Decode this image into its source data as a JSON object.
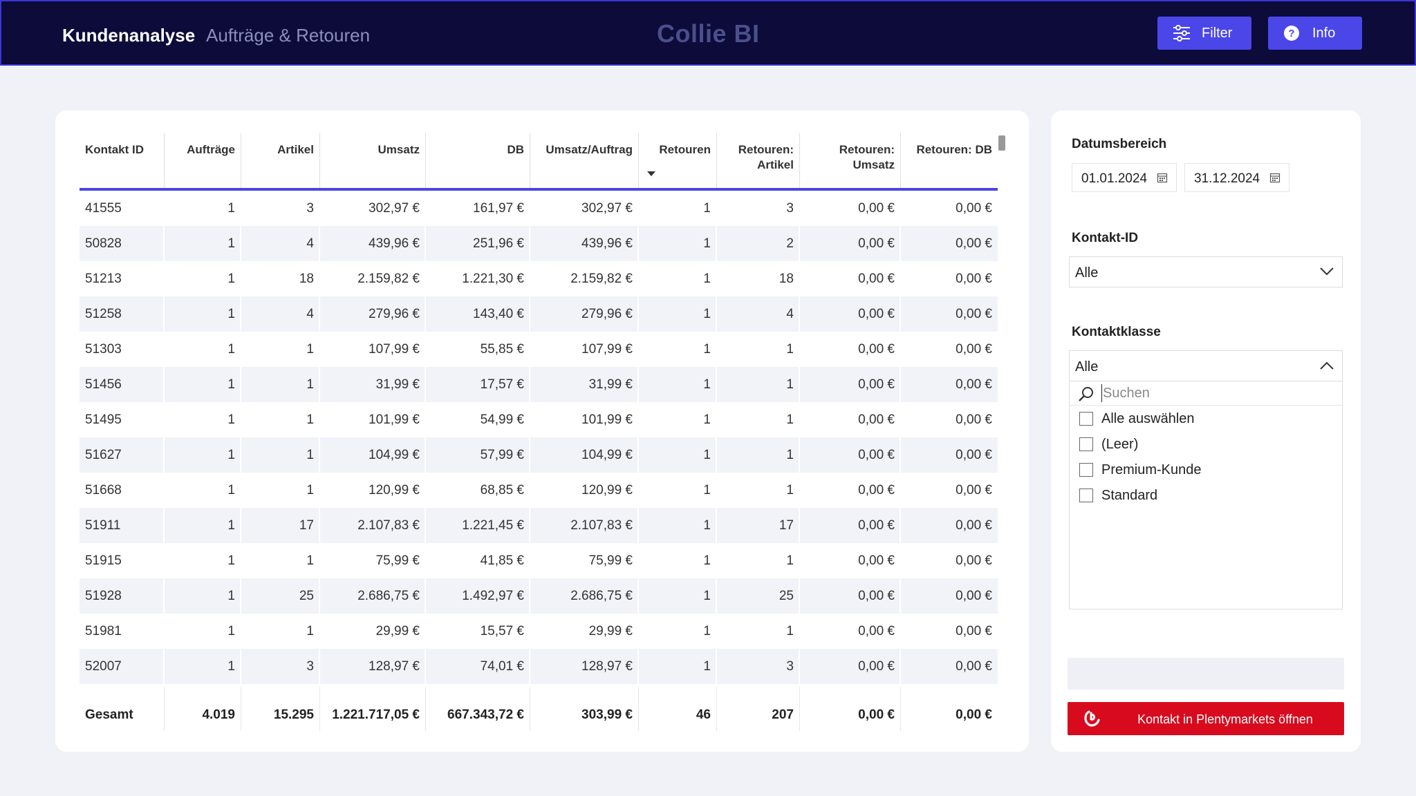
{
  "header": {
    "title": "Kundenanalyse",
    "subtitle": "Aufträge & Retouren",
    "brand": "Collie BI",
    "filter_label": "Filter",
    "info_label": "Info",
    "accent_color": "#4b46e8",
    "background_color": "#0d0b3a"
  },
  "table": {
    "columns": [
      "Kontakt ID",
      "Aufträge",
      "Artikel",
      "Umsatz",
      "DB",
      "Umsatz/Auftrag",
      "Retouren",
      "Retouren:\nArtikel",
      "Retouren:\nUmsatz",
      "Retouren: DB"
    ],
    "sorted_column": "Retouren",
    "sort_direction": "descending",
    "rows": [
      [
        "41555",
        "1",
        "3",
        "302,97 €",
        "161,97 €",
        "302,97 €",
        "1",
        "3",
        "0,00 €",
        "0,00 €"
      ],
      [
        "50828",
        "1",
        "4",
        "439,96 €",
        "251,96 €",
        "439,96 €",
        "1",
        "2",
        "0,00 €",
        "0,00 €"
      ],
      [
        "51213",
        "1",
        "18",
        "2.159,82 €",
        "1.221,30 €",
        "2.159,82 €",
        "1",
        "18",
        "0,00 €",
        "0,00 €"
      ],
      [
        "51258",
        "1",
        "4",
        "279,96 €",
        "143,40 €",
        "279,96 €",
        "1",
        "4",
        "0,00 €",
        "0,00 €"
      ],
      [
        "51303",
        "1",
        "1",
        "107,99 €",
        "55,85 €",
        "107,99 €",
        "1",
        "1",
        "0,00 €",
        "0,00 €"
      ],
      [
        "51456",
        "1",
        "1",
        "31,99 €",
        "17,57 €",
        "31,99 €",
        "1",
        "1",
        "0,00 €",
        "0,00 €"
      ],
      [
        "51495",
        "1",
        "1",
        "101,99 €",
        "54,99 €",
        "101,99 €",
        "1",
        "1",
        "0,00 €",
        "0,00 €"
      ],
      [
        "51627",
        "1",
        "1",
        "104,99 €",
        "57,99 €",
        "104,99 €",
        "1",
        "1",
        "0,00 €",
        "0,00 €"
      ],
      [
        "51668",
        "1",
        "1",
        "120,99 €",
        "68,85 €",
        "120,99 €",
        "1",
        "1",
        "0,00 €",
        "0,00 €"
      ],
      [
        "51911",
        "1",
        "17",
        "2.107,83 €",
        "1.221,45 €",
        "2.107,83 €",
        "1",
        "17",
        "0,00 €",
        "0,00 €"
      ],
      [
        "51915",
        "1",
        "1",
        "75,99 €",
        "41,85 €",
        "75,99 €",
        "1",
        "1",
        "0,00 €",
        "0,00 €"
      ],
      [
        "51928",
        "1",
        "25",
        "2.686,75 €",
        "1.492,97 €",
        "2.686,75 €",
        "1",
        "25",
        "0,00 €",
        "0,00 €"
      ],
      [
        "51981",
        "1",
        "1",
        "29,99 €",
        "15,57 €",
        "29,99 €",
        "1",
        "1",
        "0,00 €",
        "0,00 €"
      ],
      [
        "52007",
        "1",
        "3",
        "128,97 €",
        "74,01 €",
        "128,97 €",
        "1",
        "3",
        "0,00 €",
        "0,00 €"
      ]
    ],
    "totals": [
      "Gesamt",
      "4.019",
      "15.295",
      "1.221.717,05 €",
      "667.343,72 €",
      "303,99 €",
      "46",
      "207",
      "0,00 €",
      "0,00 €"
    ]
  },
  "filters": {
    "date_range_label": "Datumsbereich",
    "date_from": "01.01.2024",
    "date_to": "31.12.2024",
    "contact_id_label": "Kontakt-ID",
    "contact_id_value": "Alle",
    "contact_class_label": "Kontaktklasse",
    "contact_class_value": "Alle",
    "search_placeholder": "Suchen",
    "options": [
      "Alle auswählen",
      "(Leer)",
      "Premium-Kunde",
      "Standard"
    ],
    "open_button_label": "Kontakt in Plentymarkets öffnen",
    "open_button_color": "#d80b1e"
  }
}
